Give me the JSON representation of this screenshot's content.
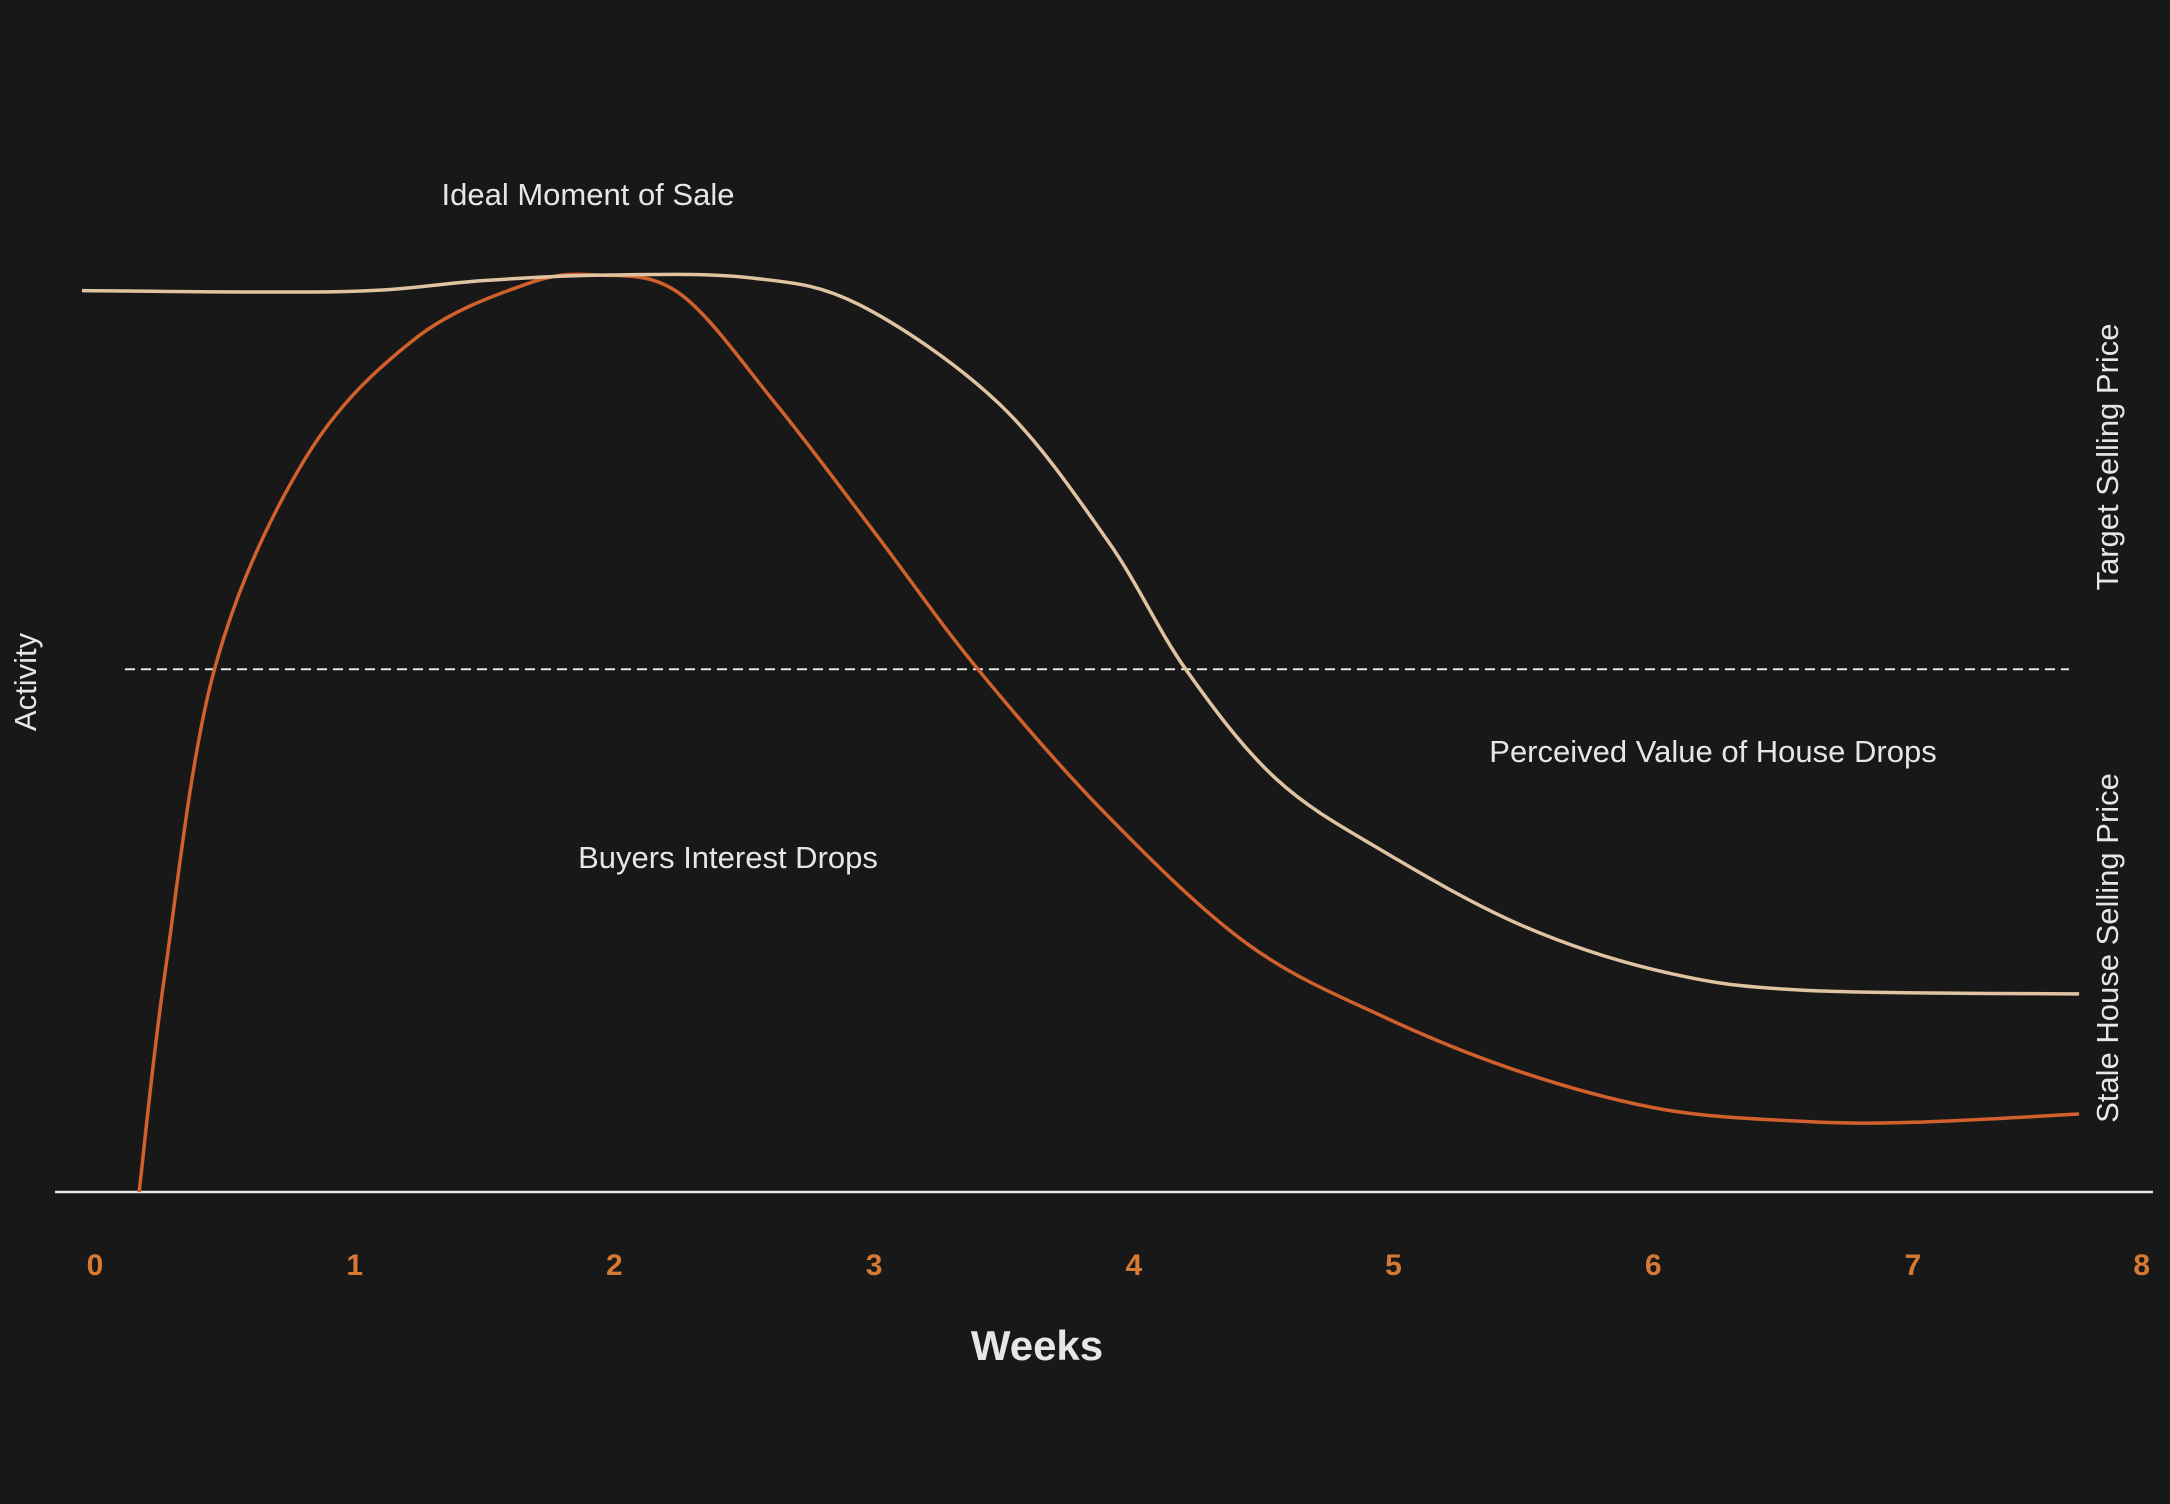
{
  "chart_data": {
    "type": "line",
    "title": "",
    "xlabel": "Weeks",
    "ylabel": "Activity",
    "xlim": [
      0,
      8
    ],
    "ylim": [
      0,
      100
    ],
    "x_ticks": [
      "0",
      "1",
      "2",
      "3",
      "4",
      "5",
      "6",
      "7",
      "8"
    ],
    "grid": false,
    "reference_line": {
      "y": 57,
      "style": "dashed",
      "color": "#e6e6e6"
    },
    "right_labels": {
      "upper": "Target Selling Price",
      "lower": "Stale House Selling Price"
    },
    "annotations": {
      "peak": "Ideal Moment of Sale",
      "buyers": "Buyers Interest Drops",
      "perceived": "Perceived Value of House Drops"
    },
    "series": [
      {
        "color": "#d2602c",
        "points": [
          [
            0.17,
            0
          ],
          [
            0.27,
            24
          ],
          [
            0.46,
            57
          ],
          [
            0.81,
            80
          ],
          [
            1.23,
            93
          ],
          [
            1.66,
            99
          ],
          [
            1.93,
            100
          ],
          [
            2.25,
            98
          ],
          [
            2.62,
            86
          ],
          [
            3.0,
            72
          ],
          [
            3.4,
            57
          ],
          [
            3.9,
            41
          ],
          [
            4.44,
            27
          ],
          [
            4.97,
            19
          ],
          [
            5.5,
            13
          ],
          [
            6.04,
            9
          ],
          [
            6.58,
            7.7
          ],
          [
            7.0,
            7.6
          ],
          [
            7.64,
            8.5
          ]
        ]
      },
      {
        "color": "#e0c3a0",
        "points": [
          [
            -0.05,
            98.3
          ],
          [
            0.97,
            98.2
          ],
          [
            1.5,
            99.4
          ],
          [
            1.98,
            100
          ],
          [
            2.52,
            99.7
          ],
          [
            2.94,
            96.8
          ],
          [
            3.48,
            86
          ],
          [
            3.9,
            71
          ],
          [
            4.2,
            57
          ],
          [
            4.55,
            45
          ],
          [
            4.97,
            37
          ],
          [
            5.5,
            29
          ],
          [
            6.04,
            24
          ],
          [
            6.58,
            22
          ],
          [
            7.64,
            21.6
          ]
        ]
      }
    ],
    "colors": {
      "background": "#181818",
      "axis": "#e6e6e6",
      "tick_labels": "#d47a35"
    }
  }
}
